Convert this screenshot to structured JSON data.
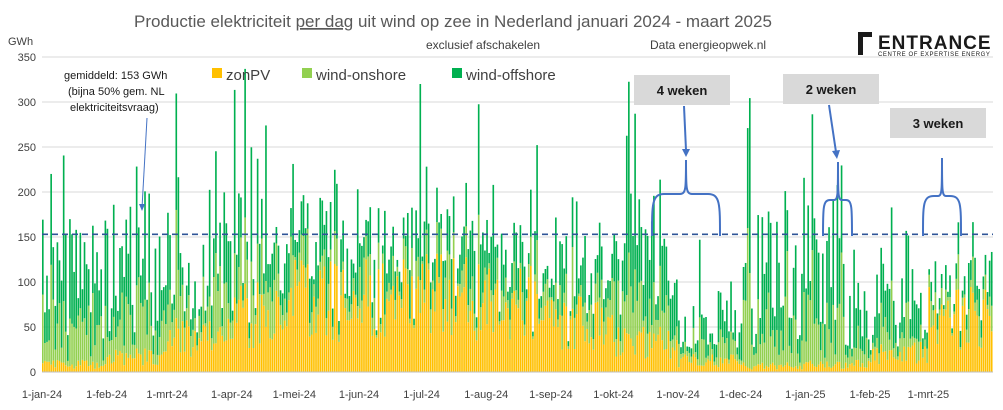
{
  "title_parts": {
    "before": "Productie elektriciteit ",
    "underlined": "per dag",
    "after": " uit wind op zee in Nederland januari 2024 - maart 2025"
  },
  "subtitle": "exclusief afschakelen",
  "source": "Data energieopwek.nl",
  "logo": {
    "main": "ENTRANCE",
    "sub": "CENTRE OF EXPERTISE ENERGY"
  },
  "colors": {
    "zonPV": "#FFC000",
    "wind-onshore": "#92D050",
    "wind-offshore": "#00B050",
    "avg_line": "#2F5597",
    "callout_bg": "#D9D9D9",
    "callout_arrow": "#4472C4"
  },
  "annotation": {
    "avg_line1": "gemiddeld: 153 GWh",
    "avg_line2": "(bijna 50% gem. NL",
    "avg_line3": "elektriciteitsvraag)"
  },
  "callouts": [
    "4 weken",
    "2 weken",
    "3 weken"
  ],
  "chart_data": {
    "type": "bar",
    "stacked": true,
    "ylabel": "GWh",
    "ylim": [
      0,
      350
    ],
    "yticks": [
      0,
      50,
      100,
      150,
      200,
      250,
      300,
      350
    ],
    "grid": true,
    "legend_position": "top-left",
    "x_start": "2024-01-01",
    "x_end": "2025-03-31",
    "xtick_labels": [
      {
        "date": "2024-01-01",
        "label": "1-jan-24"
      },
      {
        "date": "2024-02-01",
        "label": "1-feb-24"
      },
      {
        "date": "2024-03-01",
        "label": "1-mrt-24"
      },
      {
        "date": "2024-04-01",
        "label": "1-apr-24"
      },
      {
        "date": "2024-05-01",
        "label": "1-mei-24"
      },
      {
        "date": "2024-06-01",
        "label": "1-jun-24"
      },
      {
        "date": "2024-07-01",
        "label": "1-jul-24"
      },
      {
        "date": "2024-08-01",
        "label": "1-aug-24"
      },
      {
        "date": "2024-09-01",
        "label": "1-sep-24"
      },
      {
        "date": "2024-10-01",
        "label": "1-okt-24"
      },
      {
        "date": "2024-11-01",
        "label": "1-nov-24"
      },
      {
        "date": "2024-12-01",
        "label": "1-dec-24"
      },
      {
        "date": "2025-01-01",
        "label": "1-jan-25"
      },
      {
        "date": "2025-02-01",
        "label": "1-feb-25"
      },
      {
        "date": "2025-03-01",
        "label": "1-mrt-25"
      }
    ],
    "average": 153,
    "series": [
      {
        "name": "zonPV",
        "color": "#FFC000"
      },
      {
        "name": "wind-onshore",
        "color": "#92D050"
      },
      {
        "name": "wind-offshore",
        "color": "#00B050"
      }
    ],
    "monthly_typical_values": [
      {
        "month": "2024-01",
        "zonPV": 10,
        "wind-onshore": 45,
        "wind-offshore": 60
      },
      {
        "month": "2024-02",
        "zonPV": 20,
        "wind-onshore": 55,
        "wind-offshore": 70
      },
      {
        "month": "2024-03",
        "zonPV": 45,
        "wind-onshore": 45,
        "wind-offshore": 55
      },
      {
        "month": "2024-04",
        "zonPV": 75,
        "wind-onshore": 40,
        "wind-offshore": 55
      },
      {
        "month": "2024-05",
        "zonPV": 95,
        "wind-onshore": 25,
        "wind-offshore": 40
      },
      {
        "month": "2024-06",
        "zonPV": 105,
        "wind-onshore": 20,
        "wind-offshore": 35
      },
      {
        "month": "2024-07",
        "zonPV": 100,
        "wind-onshore": 25,
        "wind-offshore": 40
      },
      {
        "month": "2024-08",
        "zonPV": 90,
        "wind-onshore": 20,
        "wind-offshore": 35
      },
      {
        "month": "2024-09",
        "zonPV": 65,
        "wind-onshore": 25,
        "wind-offshore": 45
      },
      {
        "month": "2024-10",
        "zonPV": 40,
        "wind-onshore": 40,
        "wind-offshore": 60
      },
      {
        "month": "2024-11",
        "zonPV": 15,
        "wind-onshore": 35,
        "wind-offshore": 55
      },
      {
        "month": "2024-12",
        "zonPV": 8,
        "wind-onshore": 50,
        "wind-offshore": 70
      },
      {
        "month": "2025-01",
        "zonPV": 10,
        "wind-onshore": 45,
        "wind-offshore": 65
      },
      {
        "month": "2025-02",
        "zonPV": 25,
        "wind-onshore": 30,
        "wind-offshore": 45
      },
      {
        "month": "2025-03",
        "zonPV": 70,
        "wind-onshore": 25,
        "wind-offshore": 35
      }
    ],
    "peak": {
      "date": "2024-06-30",
      "value": 320
    },
    "low_wind_periods": [
      {
        "label": "4 weken",
        "start": "2024-10-27",
        "end": "2024-11-24"
      },
      {
        "label": "2 weken",
        "start": "2025-01-20",
        "end": "2025-02-03"
      },
      {
        "label": "3 weken",
        "start": "2025-02-22",
        "end": "2025-03-15"
      }
    ]
  }
}
